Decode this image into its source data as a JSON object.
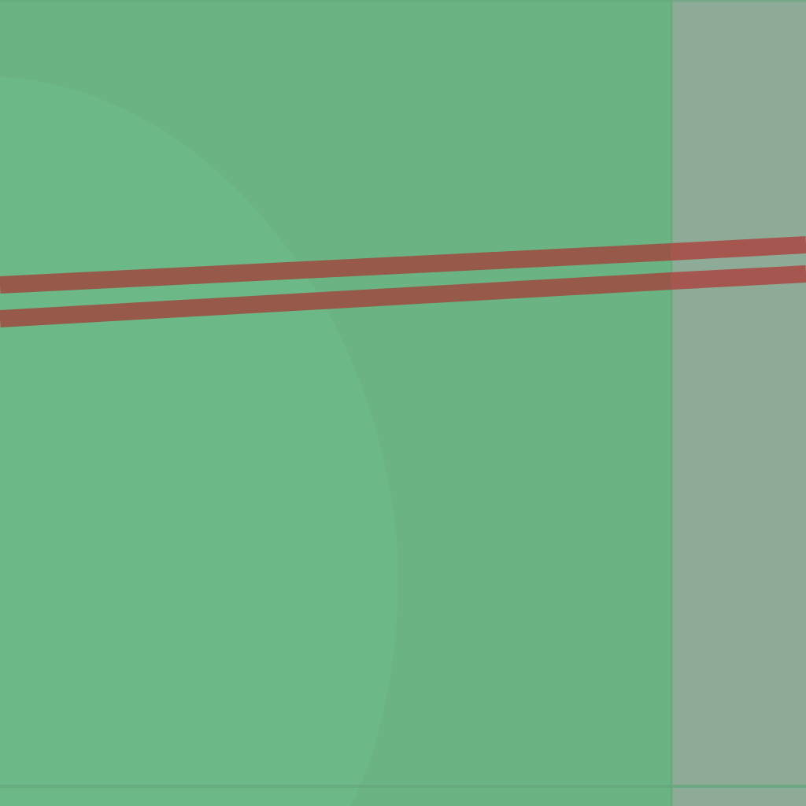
{
  "map": {
    "colors": {
      "park": "#6bb382",
      "park_border": "#67ac7c",
      "open_area": "#6cb886",
      "adjacent_area": "#8eab97",
      "road": "#96594a",
      "road_over_adjacent": "#a5564f",
      "edge_line": "#67a87d"
    },
    "features": [
      {
        "kind": "park",
        "icon": "none"
      },
      {
        "kind": "open-area",
        "icon": "none"
      },
      {
        "kind": "adjacent-area",
        "icon": "none"
      },
      {
        "kind": "dual-carriageway-road",
        "icon": "none"
      }
    ]
  }
}
